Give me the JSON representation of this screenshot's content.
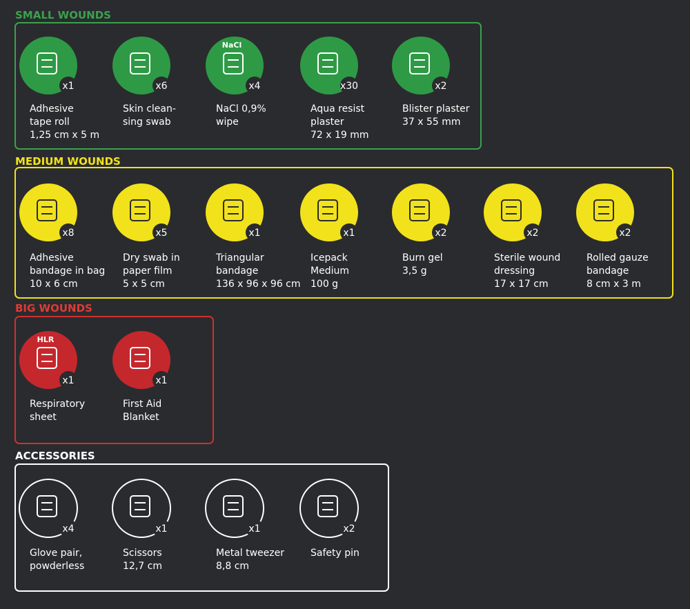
{
  "sections": [
    {
      "title": "SMALL WOUNDS",
      "items": [
        {
          "lines": [
            "Adhesive",
            "tape roll",
            "1,25 cm x 5 m"
          ],
          "quantity": "x1"
        },
        {
          "lines": [
            "Skin clean-",
            "sing swab"
          ],
          "quantity": "x6"
        },
        {
          "lines": [
            "NaCl 0,9%",
            "wipe"
          ],
          "quantity": "x4",
          "icon_text": "NaCl"
        },
        {
          "lines": [
            "Aqua resist",
            "plaster",
            "72 x 19 mm"
          ],
          "quantity": "x30"
        },
        {
          "lines": [
            "Blister plaster",
            "37 x 55 mm"
          ],
          "quantity": "x2"
        }
      ]
    },
    {
      "title": "MEDIUM WOUNDS",
      "items": [
        {
          "lines": [
            "Adhesive",
            "bandage in bag",
            "10 x 6 cm"
          ],
          "quantity": "x8"
        },
        {
          "lines": [
            "Dry swab in",
            "paper film",
            "5 x 5 cm"
          ],
          "quantity": "x5"
        },
        {
          "lines": [
            "Triangular",
            "bandage",
            "136 x 96 x 96 cm"
          ],
          "quantity": "x1"
        },
        {
          "lines": [
            "Icepack",
            "Medium",
            "100 g"
          ],
          "quantity": "x1"
        },
        {
          "lines": [
            "Burn gel",
            "3,5 g"
          ],
          "quantity": "x2"
        },
        {
          "lines": [
            "Sterile wound",
            "dressing",
            "17 x 17 cm"
          ],
          "quantity": "x2"
        },
        {
          "lines": [
            "Rolled gauze",
            "bandage",
            "8 cm x 3 m"
          ],
          "quantity": "x2"
        }
      ]
    },
    {
      "title": "BIG WOUNDS",
      "items": [
        {
          "lines": [
            "Respiratory",
            "sheet"
          ],
          "quantity": "x1",
          "icon_text": "HLR"
        },
        {
          "lines": [
            "First Aid",
            "Blanket"
          ],
          "quantity": "x1"
        }
      ]
    },
    {
      "title": "ACCESSORIES",
      "items": [
        {
          "lines": [
            "Glove pair,",
            "powderless"
          ],
          "quantity": "x4"
        },
        {
          "lines": [
            "Scissors",
            "12,7 cm"
          ],
          "quantity": "x1"
        },
        {
          "lines": [
            "Metal tweezer",
            "8,8 cm"
          ],
          "quantity": "x1"
        },
        {
          "lines": [
            "Safety pin"
          ],
          "quantity": "x2"
        }
      ]
    }
  ]
}
